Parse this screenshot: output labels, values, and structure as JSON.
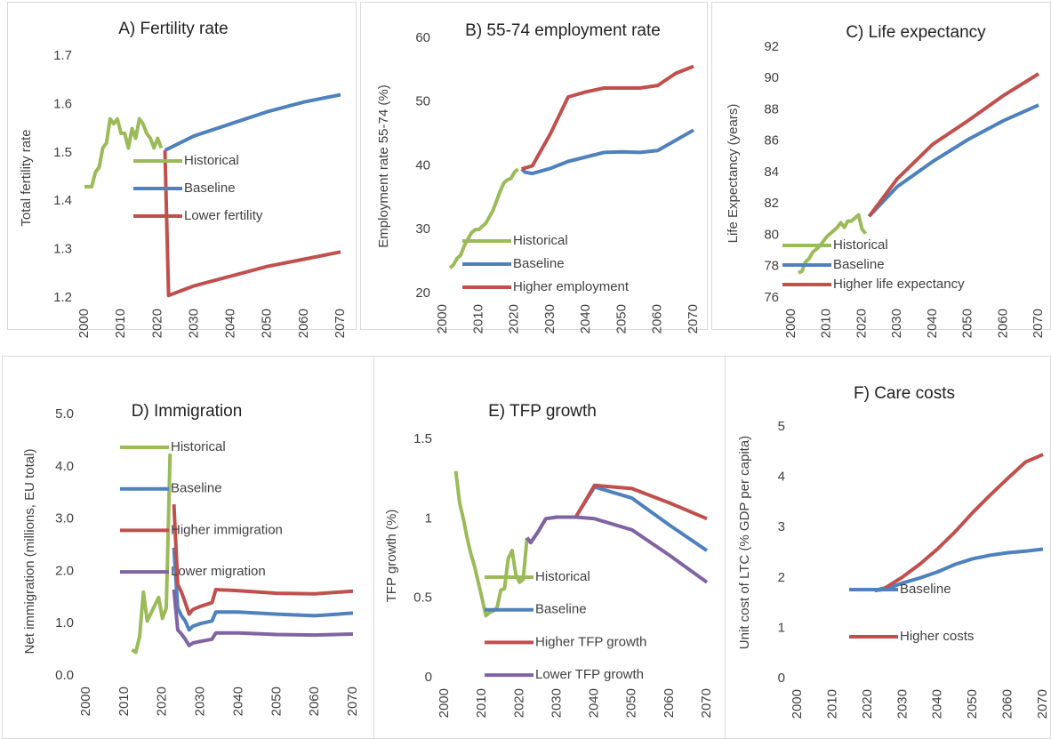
{
  "chart_data": [
    {
      "type": "line",
      "title": "A) Fertility rate",
      "y_label": "Total fertility rate",
      "ylim": [
        1.2,
        1.7
      ],
      "yticks": [
        1.2,
        1.3,
        1.4,
        1.5,
        1.6,
        1.7
      ],
      "xlim": [
        2000,
        2070
      ],
      "xticks": [
        2000,
        2010,
        2020,
        2030,
        2040,
        2050,
        2060,
        2070
      ],
      "series": [
        {
          "name": "Historical",
          "color": "#9bbb59",
          "x": [
            2000,
            2001,
            2002,
            2003,
            2004,
            2005,
            2006,
            2007,
            2008,
            2009,
            2010,
            2011,
            2012,
            2013,
            2014,
            2015,
            2016,
            2017,
            2018,
            2019,
            2020,
            2021
          ],
          "values": [
            1.43,
            1.43,
            1.43,
            1.46,
            1.47,
            1.51,
            1.52,
            1.57,
            1.56,
            1.57,
            1.54,
            1.54,
            1.51,
            1.55,
            1.53,
            1.57,
            1.56,
            1.54,
            1.53,
            1.51,
            1.53,
            1.51
          ]
        },
        {
          "name": "Baseline",
          "color": "#4f81bd",
          "x": [
            2022,
            2030,
            2040,
            2050,
            2060,
            2070
          ],
          "values": [
            1.505,
            1.535,
            1.56,
            1.585,
            1.605,
            1.62
          ]
        },
        {
          "name": "Lower fertility",
          "color": "#c0504d",
          "x": [
            2022,
            2023,
            2030,
            2040,
            2050,
            2060,
            2070
          ],
          "values": [
            1.505,
            1.205,
            1.225,
            1.245,
            1.265,
            1.28,
            1.295
          ]
        }
      ]
    },
    {
      "type": "line",
      "title": "B) 55-74 employment rate",
      "y_label": "Employment rate 55-74 (%)",
      "ylim": [
        20,
        60
      ],
      "yticks": [
        20,
        30,
        40,
        50,
        60
      ],
      "xlim": [
        2000,
        2070
      ],
      "xticks": [
        2000,
        2010,
        2020,
        2030,
        2040,
        2050,
        2060,
        2070
      ],
      "series": [
        {
          "name": "Historical",
          "color": "#9bbb59",
          "x": [
            2002,
            2003,
            2004,
            2005,
            2006,
            2007,
            2008,
            2009,
            2010,
            2011,
            2012,
            2013,
            2014,
            2015,
            2016,
            2017,
            2018,
            2019,
            2020,
            2021
          ],
          "values": [
            24,
            24.5,
            25.5,
            26,
            27.5,
            28.5,
            29.5,
            30,
            30,
            30.5,
            31,
            32,
            33,
            34.5,
            36,
            37.3,
            37.8,
            38,
            39,
            39.5
          ]
        },
        {
          "name": "Baseline",
          "color": "#4f81bd",
          "x": [
            2022,
            2023,
            2025,
            2030,
            2035,
            2040,
            2045,
            2050,
            2055,
            2060,
            2065,
            2070
          ],
          "values": [
            39.5,
            39,
            38.8,
            39.6,
            40.7,
            41.4,
            42.1,
            42.2,
            42.1,
            42.4,
            44,
            45.6
          ]
        },
        {
          "name": "Higher employment",
          "color": "#c0504d",
          "x": [
            2022,
            2025,
            2030,
            2035,
            2040,
            2045,
            2050,
            2055,
            2060,
            2065,
            2070
          ],
          "values": [
            39.5,
            40,
            45,
            50.8,
            51.6,
            52.2,
            52.2,
            52.2,
            52.6,
            54.5,
            55.6
          ]
        }
      ]
    },
    {
      "type": "line",
      "title": "C) Life expectancy",
      "y_label": "Life Expectancy (years)",
      "ylim": [
        76,
        92
      ],
      "yticks": [
        76,
        78,
        80,
        82,
        84,
        86,
        88,
        90,
        92
      ],
      "xlim": [
        2000,
        2070
      ],
      "xticks": [
        2000,
        2010,
        2020,
        2030,
        2040,
        2050,
        2060,
        2070
      ],
      "series": [
        {
          "name": "Historical",
          "color": "#9bbb59",
          "x": [
            2002,
            2003,
            2004,
            2005,
            2006,
            2007,
            2008,
            2009,
            2010,
            2011,
            2012,
            2013,
            2014,
            2015,
            2016,
            2017,
            2018,
            2019,
            2020,
            2021
          ],
          "values": [
            77.6,
            77.7,
            78.3,
            78.5,
            78.9,
            79.1,
            79.3,
            79.6,
            79.9,
            80.1,
            80.3,
            80.5,
            80.8,
            80.5,
            80.9,
            80.9,
            81.1,
            81.3,
            80.4,
            80.1
          ]
        },
        {
          "name": "Baseline",
          "color": "#4f81bd",
          "x": [
            2022,
            2030,
            2040,
            2050,
            2060,
            2070
          ],
          "values": [
            81.2,
            83.1,
            84.7,
            86.1,
            87.3,
            88.3
          ]
        },
        {
          "name": "Higher life expectancy",
          "color": "#c0504d",
          "x": [
            2022,
            2030,
            2040,
            2050,
            2060,
            2070
          ],
          "values": [
            81.2,
            83.6,
            85.8,
            87.3,
            88.9,
            90.3
          ]
        }
      ]
    },
    {
      "type": "line",
      "title": "D) Immigration",
      "y_label": "Net immigration (millions, EU total)",
      "ylim": [
        0,
        5
      ],
      "yticks": [
        {
          "value": 0,
          "label": "0.0"
        },
        {
          "value": 1,
          "label": "1.0"
        },
        {
          "value": 2,
          "label": "2.0"
        },
        {
          "value": 3,
          "label": "3.0"
        },
        {
          "value": 4,
          "label": "4.0"
        },
        {
          "value": 5,
          "label": "5.0"
        }
      ],
      "xlim": [
        2000,
        2070
      ],
      "xticks": [
        2000,
        2010,
        2020,
        2030,
        2040,
        2050,
        2060,
        2070
      ],
      "series": [
        {
          "name": "Historical",
          "color": "#9bbb59",
          "x": [
            2012,
            2013,
            2014,
            2015,
            2016,
            2017,
            2018,
            2019,
            2020,
            2021,
            2022
          ],
          "values": [
            0.5,
            0.45,
            0.75,
            1.6,
            1.05,
            1.2,
            1.35,
            1.5,
            1.1,
            1.3,
            4.25
          ]
        },
        {
          "name": "Baseline",
          "color": "#4f81bd",
          "x": [
            2023,
            2024,
            2025,
            2026,
            2027,
            2028,
            2030,
            2033,
            2034,
            2040,
            2050,
            2060,
            2070
          ],
          "values": [
            2.45,
            1.3,
            1.15,
            1.05,
            0.88,
            0.95,
            1.0,
            1.05,
            1.22,
            1.22,
            1.18,
            1.15,
            1.2
          ]
        },
        {
          "name": "Higher immigration",
          "color": "#c0504d",
          "x": [
            2023,
            2024,
            2025,
            2026,
            2027,
            2028,
            2030,
            2033,
            2034,
            2040,
            2050,
            2060,
            2070
          ],
          "values": [
            3.28,
            1.75,
            1.6,
            1.4,
            1.18,
            1.27,
            1.33,
            1.4,
            1.65,
            1.63,
            1.58,
            1.57,
            1.62
          ]
        },
        {
          "name": "Lower migration",
          "color": "#8064a2",
          "x": [
            2023,
            2024,
            2025,
            2026,
            2027,
            2028,
            2030,
            2033,
            2034,
            2040,
            2050,
            2060,
            2070
          ],
          "values": [
            1.65,
            0.88,
            0.8,
            0.7,
            0.58,
            0.63,
            0.66,
            0.7,
            0.82,
            0.82,
            0.79,
            0.78,
            0.8
          ]
        }
      ]
    },
    {
      "type": "line",
      "title": "E) TFP growth",
      "y_label": "TFP growth (%)",
      "ylim": [
        0,
        1.5
      ],
      "yticks": [
        0,
        0.5,
        1,
        1.5
      ],
      "xlim": [
        2000,
        2070
      ],
      "xticks": [
        2000,
        2010,
        2020,
        2030,
        2040,
        2050,
        2060,
        2070
      ],
      "series": [
        {
          "name": "Historical",
          "color": "#9bbb59",
          "x": [
            2003,
            2004,
            2005,
            2006,
            2007,
            2008,
            2009,
            2010,
            2011,
            2012,
            2013,
            2014,
            2015,
            2016,
            2017,
            2018,
            2019,
            2020,
            2021,
            2022
          ],
          "values": [
            1.3,
            1.1,
            1.0,
            0.88,
            0.78,
            0.7,
            0.6,
            0.5,
            0.39,
            0.41,
            0.42,
            0.44,
            0.55,
            0.56,
            0.75,
            0.8,
            0.65,
            0.6,
            0.62,
            0.88
          ]
        },
        {
          "name": "Baseline",
          "color": "#4f81bd",
          "x": [
            2022,
            2023,
            2025,
            2027,
            2030,
            2035,
            2040,
            2050,
            2060,
            2070
          ],
          "values": [
            0.88,
            0.85,
            0.92,
            1.0,
            1.01,
            1.01,
            1.2,
            1.13,
            0.96,
            0.8
          ]
        },
        {
          "name": "Higher TFP growth",
          "color": "#c0504d",
          "x": [
            2030,
            2035,
            2040,
            2050,
            2060,
            2070
          ],
          "values": [
            1.01,
            1.01,
            1.21,
            1.19,
            1.1,
            1.0
          ]
        },
        {
          "name": "Lower TFP growth",
          "color": "#8064a2",
          "x": [
            2022,
            2023,
            2025,
            2027,
            2030,
            2035,
            2040,
            2050,
            2060,
            2070
          ],
          "values": [
            0.88,
            0.85,
            0.92,
            1.0,
            1.01,
            1.01,
            1.0,
            0.93,
            0.77,
            0.6
          ]
        }
      ]
    },
    {
      "type": "line",
      "title": "F) Care costs",
      "y_label": "Unit cost of LTC (% GDP per capita)",
      "ylim": [
        0,
        5
      ],
      "yticks": [
        0,
        1,
        2,
        3,
        4,
        5
      ],
      "xlim": [
        2000,
        2070
      ],
      "xticks": [
        2000,
        2010,
        2020,
        2030,
        2040,
        2050,
        2060,
        2070
      ],
      "series": [
        {
          "name": "Baseline",
          "color": "#4f81bd",
          "x": [
            2022,
            2025,
            2030,
            2035,
            2040,
            2045,
            2050,
            2055,
            2060,
            2065,
            2070
          ],
          "values": [
            1.75,
            1.77,
            1.9,
            2.0,
            2.12,
            2.27,
            2.38,
            2.45,
            2.5,
            2.53,
            2.57
          ]
        },
        {
          "name": "Higher costs",
          "color": "#c0504d",
          "x": [
            2022,
            2025,
            2030,
            2035,
            2040,
            2045,
            2050,
            2055,
            2060,
            2065,
            2070
          ],
          "values": [
            1.75,
            1.8,
            2.02,
            2.28,
            2.58,
            2.92,
            3.3,
            3.65,
            3.98,
            4.3,
            4.45
          ]
        }
      ]
    }
  ]
}
